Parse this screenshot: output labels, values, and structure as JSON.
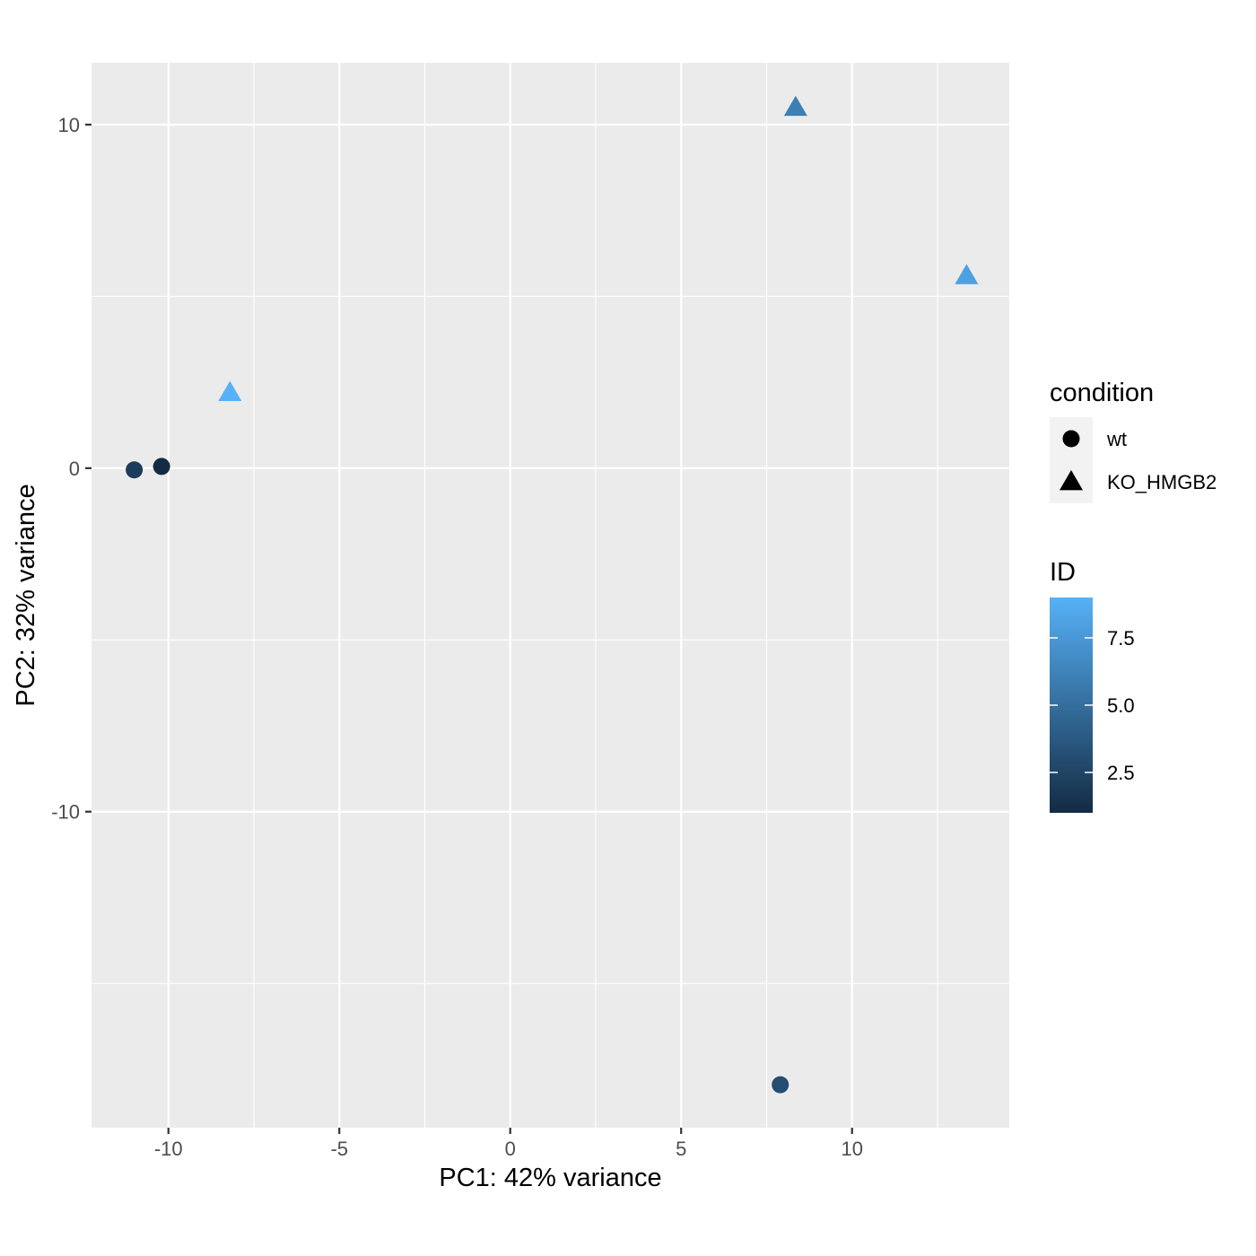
{
  "chart_data": {
    "type": "scatter",
    "xlabel": "PC1: 42% variance",
    "ylabel": "PC2: 32% variance",
    "xlim": [
      -12.25,
      14.6
    ],
    "ylim": [
      -19.2,
      11.8
    ],
    "x_ticks": [
      -10,
      -5,
      0,
      5,
      10
    ],
    "x_tick_labels": [
      "-10",
      "-5",
      "0",
      "5",
      "10"
    ],
    "y_ticks": [
      10,
      0,
      -10
    ],
    "y_tick_labels": [
      "10",
      "0",
      "-10"
    ],
    "grid": true,
    "legend_position": "right",
    "points": [
      {
        "x": -11.0,
        "y": -0.05,
        "condition": "wt",
        "id": 2
      },
      {
        "x": -10.2,
        "y": 0.05,
        "condition": "wt",
        "id": 1
      },
      {
        "x": 7.9,
        "y": -17.95,
        "condition": "wt",
        "id": 3
      },
      {
        "x": -8.2,
        "y": 2.2,
        "condition": "KO_HMGB2",
        "id": 9
      },
      {
        "x": 8.35,
        "y": 10.5,
        "condition": "KO_HMGB2",
        "id": 6
      },
      {
        "x": 13.35,
        "y": 5.6,
        "condition": "KO_HMGB2",
        "id": 8
      }
    ],
    "legend": {
      "shape_title": "condition",
      "shape_entries": [
        {
          "label": "wt",
          "shape": "circle"
        },
        {
          "label": "KO_HMGB2",
          "shape": "triangle"
        }
      ],
      "color_title": "ID",
      "color_range": [
        1,
        9
      ],
      "color_low": "#132B43",
      "color_high": "#56B1F7",
      "color_ticks": [
        2.5,
        5.0,
        7.5
      ],
      "color_tick_labels": [
        "2.5",
        "5.0",
        "7.5"
      ]
    },
    "colors": {
      "panel_background": "#ebebeb",
      "grid_major": "#ffffff",
      "tick_text": "#4d4d4d"
    }
  }
}
